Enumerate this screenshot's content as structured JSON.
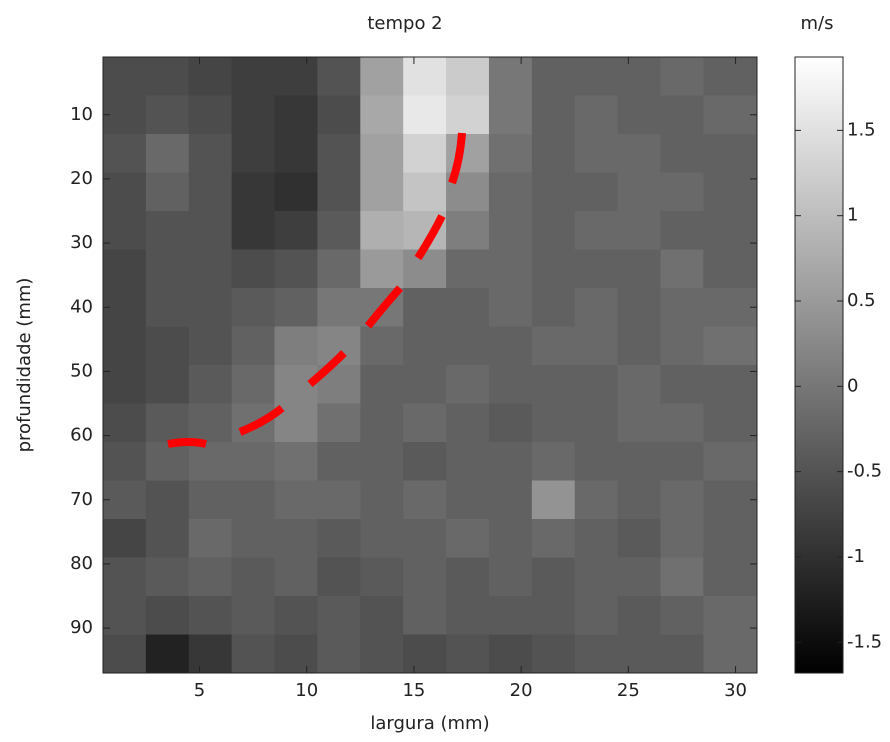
{
  "chart_data": {
    "type": "heatmap",
    "title": "tempo 2",
    "xlabel": "largura (mm)",
    "ylabel": "profundidade (mm)",
    "x": [
      1.5,
      3.5,
      5.5,
      7.5,
      9.5,
      11.5,
      13.5,
      15.5,
      17.5,
      19.5,
      21.5,
      23.5,
      25.5,
      27.5,
      29.5
    ],
    "y": [
      4,
      10,
      16,
      22,
      28,
      34,
      40,
      46,
      52,
      58,
      64,
      70,
      76,
      82,
      88,
      94
    ],
    "z": [
      [
        -0.6,
        -0.6,
        -0.7,
        -0.8,
        -0.8,
        -0.5,
        0.6,
        1.5,
        1.2,
        0.0,
        -0.3,
        -0.3,
        -0.3,
        -0.2,
        -0.3
      ],
      [
        -0.6,
        -0.5,
        -0.6,
        -0.8,
        -0.9,
        -0.6,
        0.7,
        1.6,
        1.3,
        0.0,
        -0.3,
        -0.2,
        -0.3,
        -0.3,
        -0.2
      ],
      [
        -0.5,
        -0.2,
        -0.5,
        -0.8,
        -0.9,
        -0.5,
        0.6,
        1.3,
        0.6,
        -0.1,
        -0.3,
        -0.2,
        -0.2,
        -0.3,
        -0.3
      ],
      [
        -0.6,
        -0.3,
        -0.5,
        -0.9,
        -1.0,
        -0.5,
        0.6,
        1.1,
        0.3,
        -0.2,
        -0.3,
        -0.3,
        -0.2,
        -0.2,
        -0.3
      ],
      [
        -0.6,
        -0.5,
        -0.5,
        -0.9,
        -0.8,
        -0.4,
        0.8,
        0.9,
        0.1,
        -0.2,
        -0.3,
        -0.2,
        -0.2,
        -0.3,
        -0.3
      ],
      [
        -0.7,
        -0.5,
        -0.5,
        -0.6,
        -0.5,
        -0.2,
        0.5,
        0.3,
        -0.2,
        -0.2,
        -0.3,
        -0.3,
        -0.3,
        -0.1,
        -0.3
      ],
      [
        -0.7,
        -0.5,
        -0.5,
        -0.4,
        -0.3,
        0.0,
        0.0,
        -0.3,
        -0.3,
        -0.2,
        -0.3,
        -0.2,
        -0.3,
        -0.2,
        -0.2
      ],
      [
        -0.7,
        -0.6,
        -0.5,
        -0.3,
        0.1,
        0.2,
        -0.2,
        -0.3,
        -0.3,
        -0.3,
        -0.2,
        -0.2,
        -0.3,
        -0.2,
        -0.1
      ],
      [
        -0.7,
        -0.6,
        -0.4,
        -0.2,
        0.2,
        0.1,
        -0.3,
        -0.3,
        -0.2,
        -0.3,
        -0.3,
        -0.3,
        -0.2,
        -0.3,
        -0.3
      ],
      [
        -0.6,
        -0.4,
        -0.3,
        -0.1,
        0.2,
        -0.1,
        -0.3,
        -0.2,
        -0.3,
        -0.4,
        -0.3,
        -0.3,
        -0.2,
        -0.2,
        -0.3
      ],
      [
        -0.5,
        -0.3,
        -0.2,
        -0.2,
        -0.1,
        -0.3,
        -0.3,
        -0.4,
        -0.3,
        -0.3,
        -0.2,
        -0.3,
        -0.3,
        -0.3,
        -0.2
      ],
      [
        -0.4,
        -0.5,
        -0.3,
        -0.3,
        -0.2,
        -0.2,
        -0.3,
        -0.2,
        -0.3,
        -0.3,
        0.4,
        -0.2,
        -0.3,
        -0.2,
        -0.3
      ],
      [
        -0.7,
        -0.5,
        -0.2,
        -0.3,
        -0.3,
        -0.4,
        -0.3,
        -0.3,
        -0.2,
        -0.3,
        -0.2,
        -0.3,
        -0.4,
        -0.2,
        -0.3
      ],
      [
        -0.5,
        -0.4,
        -0.3,
        -0.4,
        -0.3,
        -0.5,
        -0.4,
        -0.3,
        -0.4,
        -0.3,
        -0.4,
        -0.3,
        -0.3,
        -0.1,
        -0.3
      ],
      [
        -0.5,
        -0.6,
        -0.5,
        -0.4,
        -0.5,
        -0.4,
        -0.5,
        -0.3,
        -0.4,
        -0.4,
        -0.4,
        -0.3,
        -0.4,
        -0.3,
        -0.2
      ],
      [
        -0.6,
        -1.2,
        -0.9,
        -0.5,
        -0.6,
        -0.4,
        -0.5,
        -0.6,
        -0.5,
        -0.6,
        -0.5,
        -0.4,
        -0.4,
        -0.4,
        -0.2
      ]
    ],
    "xlim": [
      0.5,
      31
    ],
    "ylim": [
      1,
      97
    ],
    "y_reversed": true,
    "xticks": [
      5,
      10,
      15,
      20,
      25,
      30
    ],
    "yticks": [
      10,
      20,
      30,
      40,
      50,
      60,
      70,
      80,
      90
    ],
    "colormap": "gray",
    "colorbar": {
      "label": "m/s",
      "lim": [
        -1.68,
        1.93
      ],
      "ticks": [
        -1.5,
        -1,
        -0.5,
        0,
        0.5,
        1,
        1.5
      ]
    }
  }
}
